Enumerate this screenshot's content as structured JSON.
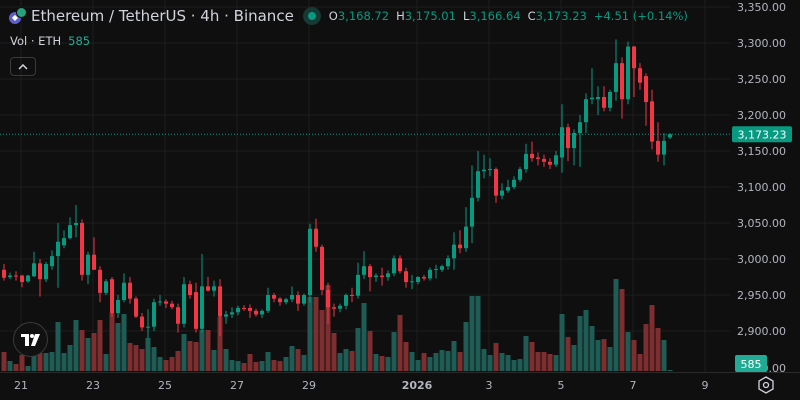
{
  "header": {
    "symbol_icon": "ethereum-icon",
    "title": "Ethereum / TetherUS · 4h · Binance",
    "status": "market-open-dot",
    "ohlc": {
      "o_label": "O",
      "o": "3,168.72",
      "h_label": "H",
      "h": "3,175.01",
      "l_label": "L",
      "l": "3,166.64",
      "c_label": "C",
      "c": "3,173.23",
      "change": "+4.51 (+0.14%)"
    }
  },
  "volume_legend": {
    "label": "Vol · ETH",
    "value": "585"
  },
  "collapse_icon": "chevron-up-icon",
  "logo": "TV",
  "colors": {
    "up": "#089981",
    "down": "#f23645",
    "vol_up": "#1f5c55",
    "vol_down": "#7f2e2f",
    "background": "#0f0f0f",
    "grid": "#1e1e1e"
  },
  "price_axis": {
    "labels": [
      "3,350.00",
      "3,300.00",
      "3,250.00",
      "3,200.00",
      "3,150.00",
      "3,100.00",
      "3,050.00",
      "3,000.00",
      "2,950.00",
      "2,900.00"
    ],
    "levels": [
      3350,
      3300,
      3250,
      3200,
      3150,
      3100,
      3050,
      3000,
      2950,
      2900
    ],
    "volume_zero_label": "0.00",
    "last_price": 3173.23,
    "last_price_label": "3,173.23",
    "last_volume_label": "585"
  },
  "time_axis": {
    "ticks": [
      {
        "label": "21",
        "date": "2025-12-21",
        "bold": false
      },
      {
        "label": "23",
        "date": "2025-12-23",
        "bold": false
      },
      {
        "label": "25",
        "date": "2025-12-25",
        "bold": false
      },
      {
        "label": "27",
        "date": "2025-12-27",
        "bold": false
      },
      {
        "label": "29",
        "date": "2025-12-29",
        "bold": false
      },
      {
        "label": "2026",
        "date": "2026-01-01",
        "bold": true
      },
      {
        "label": "3",
        "date": "2026-01-03",
        "bold": false
      },
      {
        "label": "5",
        "date": "2026-01-05",
        "bold": false
      },
      {
        "label": "7",
        "date": "2026-01-07",
        "bold": false
      },
      {
        "label": "9",
        "date": "2026-01-09",
        "bold": false
      }
    ]
  },
  "chart_data": {
    "type": "candlestick",
    "interval": "4h",
    "fields": [
      "open",
      "high",
      "low",
      "close",
      "volume"
    ],
    "candles": [
      [
        2985,
        2993,
        2970,
        2974,
        11400
      ],
      [
        2975,
        2981,
        2972,
        2977,
        6000
      ],
      [
        2977,
        2983,
        2970,
        2976,
        4200
      ],
      [
        2977,
        2978,
        2961,
        2968,
        9600
      ],
      [
        2969,
        2978,
        2967,
        2977,
        3000
      ],
      [
        2976,
        3010,
        2975,
        2994,
        9600
      ],
      [
        2994,
        3000,
        2948,
        2972,
        10800
      ],
      [
        2972,
        2996,
        2968,
        2993,
        10800
      ],
      [
        2990,
        3012,
        2985,
        3004,
        11400
      ],
      [
        3004,
        3050,
        2960,
        3024,
        29400
      ],
      [
        3019,
        3040,
        3015,
        3029,
        10800
      ],
      [
        3029,
        3058,
        3027,
        3047,
        15600
      ],
      [
        3047,
        3075,
        3030,
        3050,
        30600
      ],
      [
        3050,
        3055,
        2970,
        2978,
        24600
      ],
      [
        2978,
        3010,
        2965,
        3006,
        19800
      ],
      [
        3006,
        3030,
        2985,
        2985,
        22800
      ],
      [
        2985,
        2990,
        2940,
        2953,
        30600
      ],
      [
        2953,
        2972,
        2950,
        2969,
        10200
      ],
      [
        2972,
        2975,
        2920,
        2925,
        34800
      ],
      [
        2925,
        2950,
        2918,
        2943,
        28800
      ],
      [
        2943,
        2980,
        2940,
        2967,
        34200
      ],
      [
        2967,
        2975,
        2938,
        2945,
        16800
      ],
      [
        2945,
        2948,
        2918,
        2920,
        15600
      ],
      [
        2920,
        2925,
        2900,
        2905,
        13200
      ],
      [
        2905,
        2930,
        2890,
        2906,
        19800
      ],
      [
        2906,
        2945,
        2900,
        2940,
        14400
      ],
      [
        2940,
        2950,
        2935,
        2941,
        8400
      ],
      [
        2941,
        2944,
        2932,
        2938,
        6600
      ],
      [
        2938,
        2942,
        2930,
        2933,
        8400
      ],
      [
        2933,
        2938,
        2898,
        2910,
        12000
      ],
      [
        2910,
        2975,
        2905,
        2965,
        22200
      ],
      [
        2965,
        2970,
        2945,
        2950,
        18000
      ],
      [
        2954,
        2967,
        2898,
        2903,
        17400
      ],
      [
        2903,
        3007,
        2898,
        2962,
        24600
      ],
      [
        2962,
        2975,
        2955,
        2956,
        24600
      ],
      [
        2956,
        2970,
        2948,
        2962,
        12600
      ],
      [
        2962,
        2972,
        2893,
        2920,
        32400
      ],
      [
        2920,
        2928,
        2910,
        2923,
        13200
      ],
      [
        2923,
        2933,
        2918,
        2926,
        6600
      ],
      [
        2926,
        2935,
        2922,
        2932,
        6000
      ],
      [
        2932,
        2936,
        2928,
        2931,
        4800
      ],
      [
        2932,
        2937,
        2918,
        2928,
        10200
      ],
      [
        2928,
        2931,
        2920,
        2923,
        5400
      ],
      [
        2923,
        2930,
        2918,
        2928,
        6000
      ],
      [
        2928,
        2960,
        2925,
        2950,
        11400
      ],
      [
        2950,
        2953,
        2940,
        2945,
        6600
      ],
      [
        2945,
        2947,
        2935,
        2940,
        6000
      ],
      [
        2940,
        2946,
        2937,
        2944,
        8400
      ],
      [
        2944,
        2962,
        2940,
        2950,
        15000
      ],
      [
        2950,
        2955,
        2928,
        2938,
        13200
      ],
      [
        2938,
        2952,
        2935,
        2950,
        9600
      ],
      [
        2950,
        3049,
        2940,
        3042,
        44400
      ],
      [
        3042,
        3056,
        3010,
        3017,
        44400
      ],
      [
        3017,
        3020,
        2950,
        2957,
        36600
      ],
      [
        2957,
        2967,
        2910,
        2933,
        51600
      ],
      [
        2933,
        2938,
        2920,
        2931,
        22800
      ],
      [
        2931,
        2938,
        2926,
        2935,
        10800
      ],
      [
        2935,
        2952,
        2930,
        2950,
        13200
      ],
      [
        2950,
        2960,
        2940,
        2949,
        12000
      ],
      [
        2949,
        2995,
        2945,
        2978,
        25800
      ],
      [
        2978,
        3011,
        2972,
        2990,
        40800
      ],
      [
        2990,
        2993,
        2955,
        2975,
        24000
      ],
      [
        2975,
        2980,
        2968,
        2977,
        10200
      ],
      [
        2977,
        2988,
        2963,
        2975,
        9000
      ],
      [
        2975,
        2984,
        2970,
        2980,
        8400
      ],
      [
        2980,
        3005,
        2976,
        3001,
        23400
      ],
      [
        3001,
        3005,
        2980,
        2983,
        33600
      ],
      [
        2983,
        2988,
        2960,
        2968,
        17400
      ],
      [
        2968,
        2978,
        2958,
        2969,
        11400
      ],
      [
        2968,
        2976,
        2965,
        2975,
        6600
      ],
      [
        2975,
        2978,
        2970,
        2973,
        10800
      ],
      [
        2973,
        2988,
        2970,
        2985,
        8400
      ],
      [
        2985,
        2992,
        2973,
        2986,
        10800
      ],
      [
        2985,
        2992,
        2982,
        2990,
        12600
      ],
      [
        2990,
        3005,
        2985,
        3001,
        12000
      ],
      [
        3001,
        3037,
        2985,
        3020,
        18000
      ],
      [
        3020,
        3040,
        3008,
        3015,
        11400
      ],
      [
        3015,
        3072,
        3010,
        3045,
        29400
      ],
      [
        3045,
        3130,
        3022,
        3085,
        45000
      ],
      [
        3085,
        3150,
        3080,
        3122,
        45000
      ],
      [
        3122,
        3145,
        3112,
        3124,
        13200
      ],
      [
        3124,
        3140,
        3115,
        3125,
        9600
      ],
      [
        3125,
        3127,
        3078,
        3088,
        16800
      ],
      [
        3088,
        3105,
        3083,
        3095,
        10800
      ],
      [
        3095,
        3110,
        3092,
        3100,
        9600
      ],
      [
        3100,
        3115,
        3097,
        3110,
        6600
      ],
      [
        3110,
        3128,
        3107,
        3125,
        7200
      ],
      [
        3125,
        3160,
        3120,
        3146,
        21000
      ],
      [
        3146,
        3163,
        3135,
        3140,
        17400
      ],
      [
        3141,
        3148,
        3130,
        3139,
        11400
      ],
      [
        3139,
        3145,
        3128,
        3135,
        11400
      ],
      [
        3135,
        3140,
        3125,
        3131,
        10200
      ],
      [
        3131,
        3150,
        3128,
        3144,
        9600
      ],
      [
        3141,
        3215,
        3120,
        3183,
        34200
      ],
      [
        3183,
        3188,
        3136,
        3154,
        20400
      ],
      [
        3154,
        3180,
        3130,
        3175,
        15600
      ],
      [
        3175,
        3200,
        3128,
        3190,
        33000
      ],
      [
        3190,
        3230,
        3175,
        3222,
        36600
      ],
      [
        3222,
        3265,
        3215,
        3224,
        27000
      ],
      [
        3222,
        3240,
        3200,
        3225,
        18600
      ],
      [
        3225,
        3240,
        3205,
        3210,
        19200
      ],
      [
        3210,
        3235,
        3205,
        3232,
        14400
      ],
      [
        3232,
        3305,
        3220,
        3272,
        55200
      ],
      [
        3272,
        3280,
        3195,
        3222,
        49200
      ],
      [
        3222,
        3302,
        3215,
        3295,
        23400
      ],
      [
        3295,
        3296,
        3225,
        3265,
        18600
      ],
      [
        3265,
        3272,
        3235,
        3245,
        10200
      ],
      [
        3254,
        3258,
        3185,
        3218,
        28200
      ],
      [
        3219,
        3235,
        3152,
        3163,
        39600
      ],
      [
        3164,
        3190,
        3135,
        3145,
        25800
      ],
      [
        3145,
        3175,
        3130,
        3164,
        18600
      ],
      [
        3168.72,
        3175.01,
        3166.64,
        3173.23,
        585
      ]
    ]
  }
}
